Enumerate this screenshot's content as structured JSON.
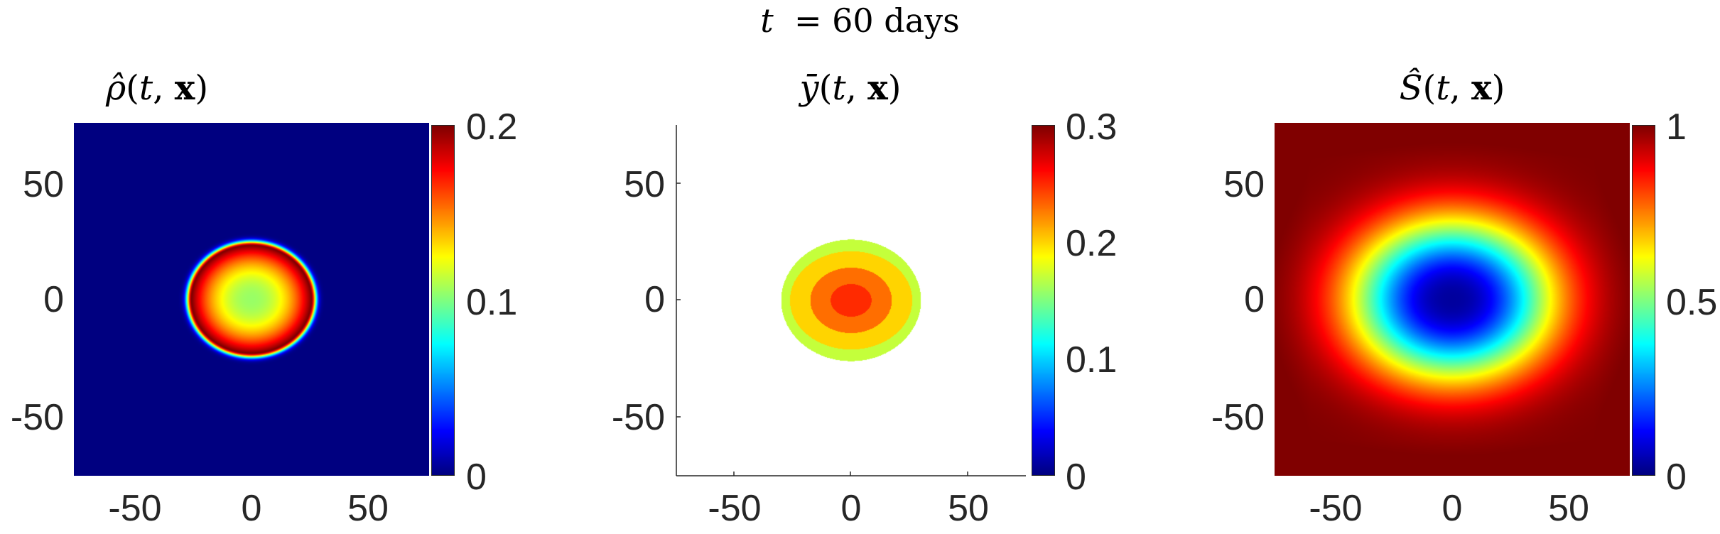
{
  "figure_title": "t  = 60 days",
  "chart_data": [
    {
      "type": "heatmap",
      "title": "ρ̂(t, x)",
      "x": [
        -75,
        75
      ],
      "y": [
        -75,
        75
      ],
      "xticks": [
        "-50",
        "0",
        "50"
      ],
      "yticks": [
        "50",
        "0",
        "-50"
      ],
      "colorbar": {
        "range": [
          0,
          0.2
        ],
        "ticks": [
          "0.2",
          "0.1",
          "0"
        ]
      },
      "colormap": "jet",
      "description_values": {
        "background": 0,
        "ring_peak": 0.2,
        "center": 0.1,
        "ring_radius": 24
      }
    },
    {
      "type": "heatmap",
      "title": "ȳ(t, x)",
      "x": [
        -75,
        75
      ],
      "y": [
        -75,
        75
      ],
      "xticks": [
        "-50",
        "0",
        "50"
      ],
      "yticks": [
        "50",
        "0",
        "-50"
      ],
      "colorbar": {
        "range": [
          0,
          0.3
        ],
        "ticks": [
          "0.3",
          "0.2",
          "0.1",
          "0"
        ]
      },
      "colormap": "jet",
      "levels": [
        0.17,
        0.2,
        0.23,
        0.25
      ],
      "grid": false
    },
    {
      "type": "heatmap",
      "title": "Ŝ(t, x)",
      "x": [
        -75,
        75
      ],
      "y": [
        -75,
        75
      ],
      "xticks": [
        "-50",
        "0",
        "50"
      ],
      "yticks": [
        "50",
        "0",
        "-50"
      ],
      "colorbar": {
        "range": [
          0,
          1
        ],
        "ticks": [
          "1",
          "0.5",
          "0"
        ]
      },
      "colormap": "jet",
      "description_values": {
        "center": 0.03,
        "edge": 0.98
      }
    }
  ],
  "colors": {
    "axis": "#262626",
    "bg": "#ffffff"
  }
}
